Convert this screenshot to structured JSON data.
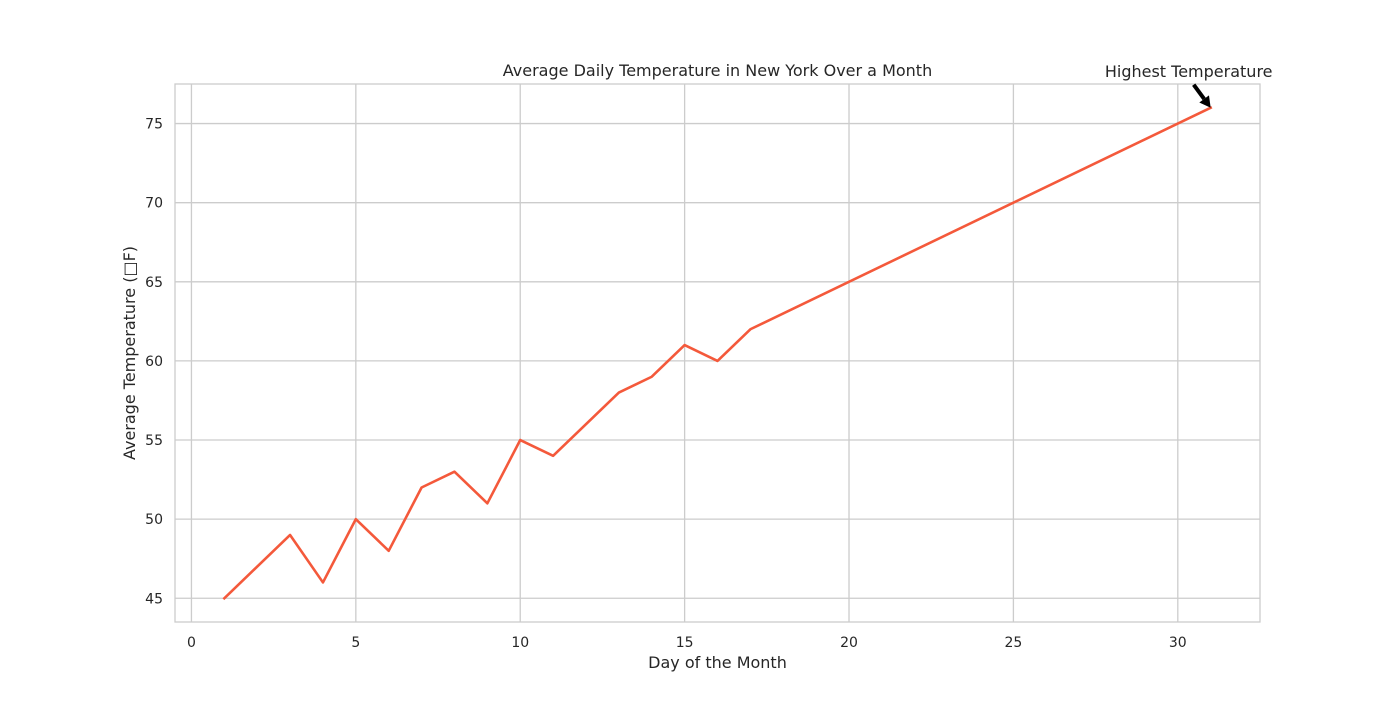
{
  "chart_data": {
    "type": "line",
    "title": "Average Daily Temperature in New York Over a Month",
    "xlabel": "Day of the Month",
    "ylabel": "Average Temperature (□F)",
    "xlim": [
      -0.5,
      32.5
    ],
    "ylim": [
      43.5,
      77.5
    ],
    "x_ticks": [
      0,
      5,
      10,
      15,
      20,
      25,
      30
    ],
    "y_ticks": [
      45,
      50,
      55,
      60,
      65,
      70,
      75
    ],
    "grid": true,
    "legend": "none",
    "series": [
      {
        "color": "#f4593b",
        "x": [
          1,
          3,
          4,
          5,
          6,
          7,
          8,
          9,
          10,
          11,
          13,
          14,
          15,
          16,
          17,
          31
        ],
        "y": [
          45,
          49,
          46,
          50,
          48,
          52,
          53,
          51,
          55,
          54,
          58,
          59,
          61,
          60,
          62,
          76
        ]
      }
    ],
    "annotations": [
      {
        "text": "Highest Temperature",
        "target_x": 31,
        "target_y": 76
      }
    ]
  }
}
